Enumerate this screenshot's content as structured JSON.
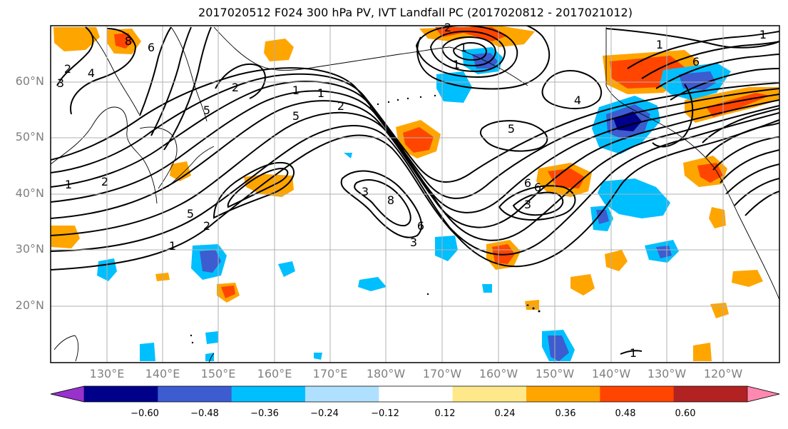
{
  "title": "2017020512 F024 300 hPa PV, IVT Landfall PC (2017020812 - 2017021012)",
  "lat_labels": [
    "60°N",
    "50°N",
    "40°N",
    "30°N",
    "20°N"
  ],
  "lon_labels": [
    "130°E",
    "140°E",
    "150°E",
    "160°E",
    "170°E",
    "180°W",
    "170°W",
    "160°W",
    "150°W",
    "140°W",
    "130°W",
    "120°W"
  ],
  "colorbar": {
    "colors": [
      "#9932cc",
      "#00008b",
      "#3c5cd0",
      "#00bfff",
      "#b0e0ff",
      "#ffffff",
      "#ffe88a",
      "#ffa500",
      "#ff4500",
      "#b22222",
      "#ff88b0"
    ],
    "ticks": [
      "−0.60",
      "−0.48",
      "−0.36",
      "−0.24",
      "−0.12",
      "0.12",
      "0.24",
      "0.36",
      "0.48",
      "0.60"
    ]
  },
  "contour_labels": [
    "8",
    "6",
    "2",
    "3",
    "4",
    "5",
    "2",
    "1",
    "1",
    "2",
    "5",
    "1",
    "2",
    "3",
    "8",
    "6",
    "3",
    "2",
    "1",
    "1",
    "4",
    "5",
    "6",
    "6",
    "3",
    "1",
    "2",
    "5",
    "1",
    "1",
    "1",
    "6"
  ]
}
